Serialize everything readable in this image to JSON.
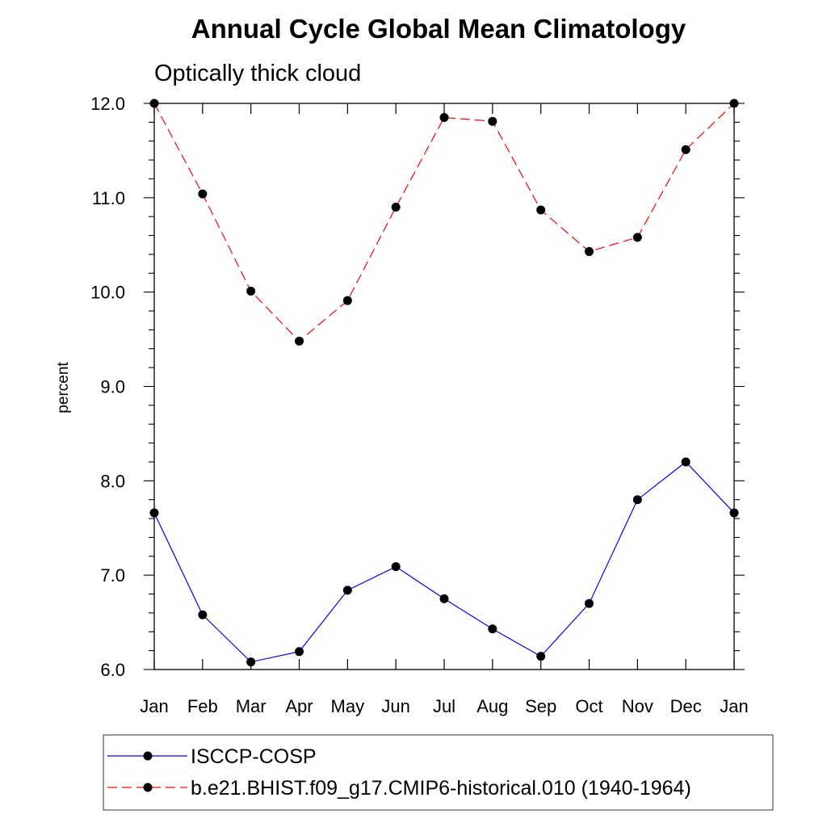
{
  "chart_data": {
    "type": "line",
    "title": "Annual Cycle Global Mean Climatology",
    "subtitle": "Optically thick cloud",
    "xlabel": "",
    "ylabel": "percent",
    "categories": [
      "Jan",
      "Feb",
      "Mar",
      "Apr",
      "May",
      "Jun",
      "Jul",
      "Aug",
      "Sep",
      "Oct",
      "Nov",
      "Dec",
      "Jan"
    ],
    "ylim": [
      6.0,
      12.0
    ],
    "yticks": [
      "6.0",
      "7.0",
      "8.0",
      "9.0",
      "10.0",
      "11.0",
      "12.0"
    ],
    "grid": false,
    "legend_position": "bottom",
    "series": [
      {
        "name": "ISCCP-COSP",
        "color": "#0000ff",
        "dash": "solid",
        "values": [
          7.66,
          6.58,
          6.08,
          6.19,
          6.84,
          7.09,
          6.75,
          6.43,
          6.14,
          6.7,
          7.8,
          8.2,
          7.66
        ]
      },
      {
        "name": "b.e21.BHIST.f09_g17.CMIP6-historical.010 (1940-1964)",
        "color": "#ff0000",
        "dash": "dashed",
        "values": [
          12.0,
          11.04,
          10.01,
          9.48,
          9.91,
          10.9,
          11.85,
          11.81,
          10.87,
          10.43,
          10.58,
          11.51,
          12.0
        ]
      }
    ]
  }
}
